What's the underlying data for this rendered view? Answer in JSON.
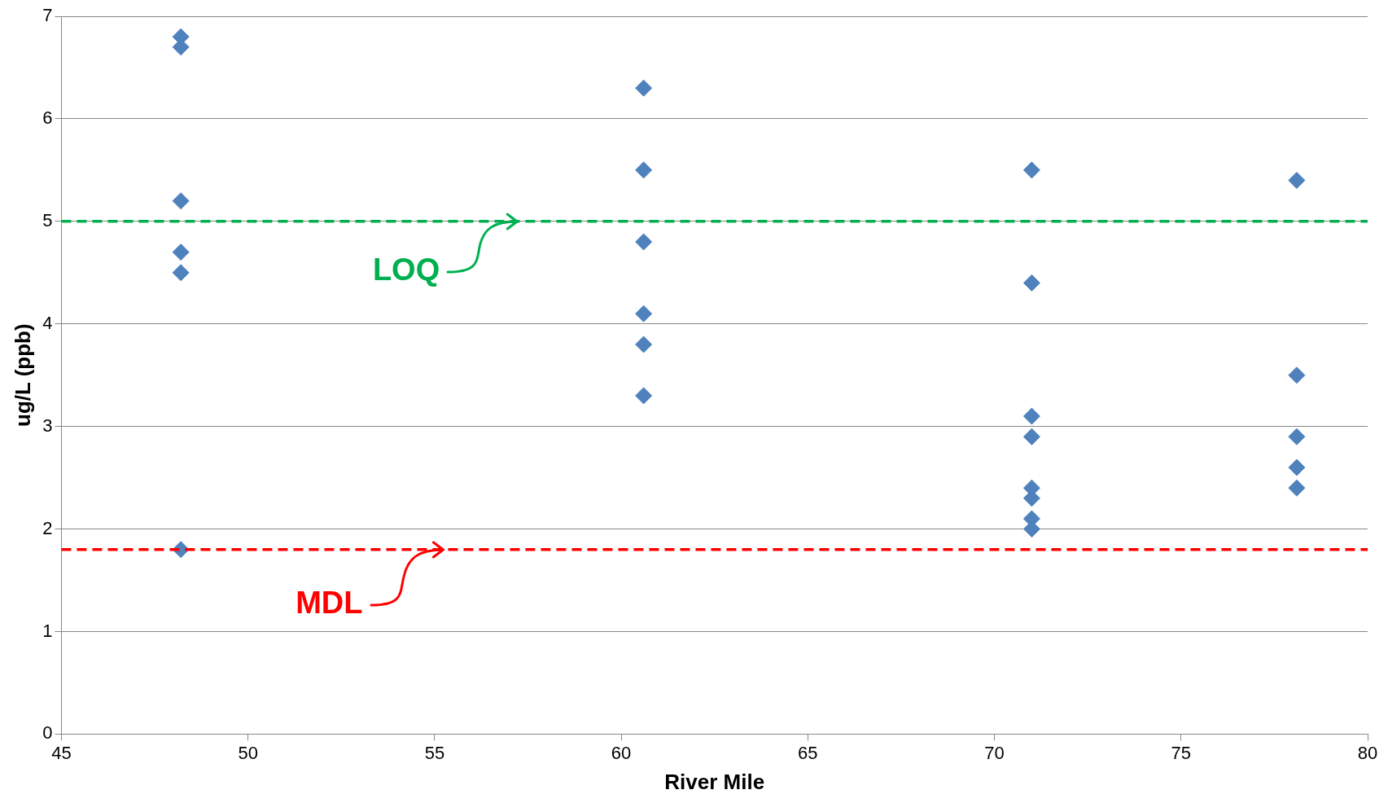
{
  "chart_data": {
    "type": "scatter",
    "xlabel": "River Mile",
    "ylabel": "ug/L (ppb)",
    "x": [
      48.2,
      48.2,
      48.2,
      48.2,
      48.2,
      48.2,
      60.6,
      60.6,
      60.6,
      60.6,
      60.6,
      60.6,
      71,
      71,
      71,
      71,
      71,
      71,
      71,
      71,
      78.1,
      78.1,
      78.1,
      78.1,
      78.1
    ],
    "values": [
      6.8,
      6.7,
      5.2,
      4.7,
      4.5,
      1.8,
      6.3,
      5.5,
      4.8,
      4.1,
      3.8,
      3.3,
      5.5,
      4.4,
      3.1,
      2.9,
      2.4,
      2.3,
      2.1,
      2.0,
      5.4,
      3.5,
      2.9,
      2.6,
      2.4
    ],
    "color": "#4f81bd",
    "marker": "diamond",
    "xlim": [
      45,
      80
    ],
    "xticks": [
      45,
      50,
      55,
      60,
      65,
      70,
      75,
      80
    ],
    "ylim": [
      0,
      7
    ],
    "yticks": [
      0,
      1,
      2,
      3,
      4,
      5,
      6,
      7
    ],
    "grid": "y",
    "legend": false,
    "ref_lines": [
      {
        "axis": "y",
        "value": 5,
        "label": "LOQ",
        "color": "#00b050",
        "line_style": "dashed"
      },
      {
        "axis": "y",
        "value": 1.8,
        "label": "MDL",
        "color": "#ff0000",
        "line_style": "dashed"
      }
    ]
  }
}
